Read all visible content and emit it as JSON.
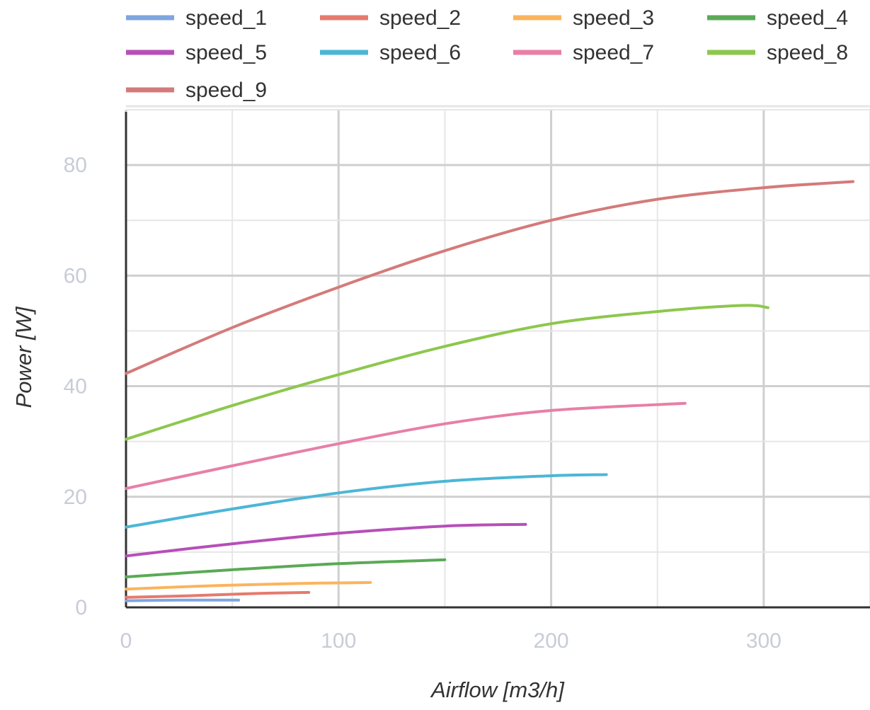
{
  "chart_data": {
    "type": "line",
    "title": "",
    "xlabel": "Airflow [m3/h]",
    "ylabel": "Power [W]",
    "xlim": [
      0,
      350
    ],
    "ylim": [
      0,
      90
    ],
    "x_ticks": [
      "0",
      "100",
      "200",
      "300"
    ],
    "y_ticks": [
      "0",
      "20",
      "40",
      "60",
      "80"
    ],
    "grid": true,
    "legend_position": "top",
    "series": [
      {
        "name": "speed_1",
        "color": "#7ea6e0",
        "x": [
          0,
          25,
          53
        ],
        "y": [
          1.2,
          1.3,
          1.3
        ]
      },
      {
        "name": "speed_2",
        "color": "#e57a6e",
        "x": [
          0,
          30,
          60,
          86
        ],
        "y": [
          1.8,
          2.1,
          2.5,
          2.7
        ]
      },
      {
        "name": "speed_3",
        "color": "#fbb45c",
        "x": [
          0,
          40,
          80,
          115
        ],
        "y": [
          3.3,
          3.9,
          4.3,
          4.5
        ]
      },
      {
        "name": "speed_4",
        "color": "#5aaa55",
        "x": [
          0,
          50,
          100,
          150
        ],
        "y": [
          5.5,
          6.8,
          7.9,
          8.6
        ]
      },
      {
        "name": "speed_5",
        "color": "#b64fb8",
        "x": [
          0,
          50,
          100,
          150,
          188
        ],
        "y": [
          9.3,
          11.5,
          13.4,
          14.7,
          15.0
        ]
      },
      {
        "name": "speed_6",
        "color": "#4cb6d6",
        "x": [
          0,
          50,
          100,
          150,
          200,
          226
        ],
        "y": [
          14.5,
          17.8,
          20.7,
          22.8,
          23.8,
          24.0
        ]
      },
      {
        "name": "speed_7",
        "color": "#e77fa6",
        "x": [
          0,
          50,
          100,
          150,
          200,
          263
        ],
        "y": [
          21.5,
          25.6,
          29.6,
          33.2,
          35.6,
          36.9
        ]
      },
      {
        "name": "speed_8",
        "color": "#8dc74d",
        "x": [
          0,
          50,
          100,
          150,
          200,
          250,
          290,
          302
        ],
        "y": [
          30.4,
          36.5,
          42.1,
          47.2,
          51.3,
          53.5,
          54.6,
          54.2
        ]
      },
      {
        "name": "speed_9",
        "color": "#d47a7a",
        "x": [
          0,
          50,
          100,
          150,
          200,
          250,
          300,
          342
        ],
        "y": [
          42.3,
          50.6,
          57.9,
          64.5,
          70.0,
          73.8,
          75.9,
          77.0
        ]
      }
    ]
  }
}
